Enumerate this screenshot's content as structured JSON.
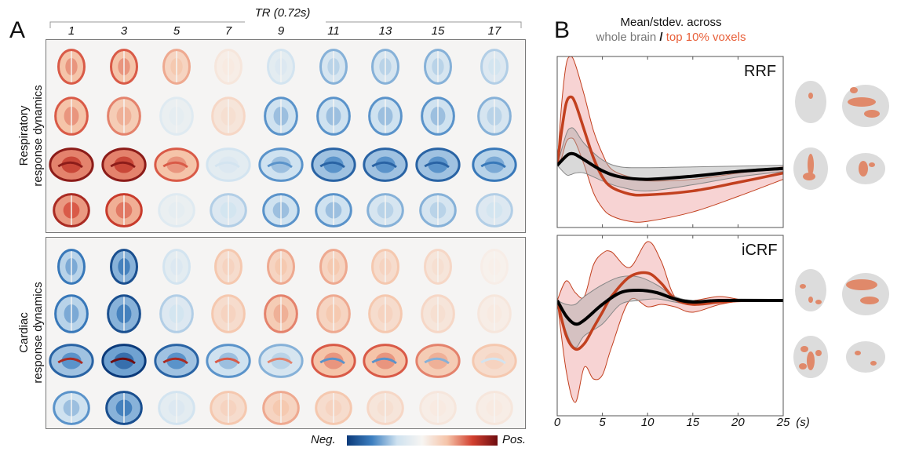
{
  "panel_a": {
    "letter": "A",
    "tr_label": "TR (0.72s)",
    "columns": [
      "1",
      "3",
      "5",
      "7",
      "9",
      "11",
      "13",
      "15",
      "17"
    ],
    "groups": [
      {
        "label_line1": "Respiratory",
        "label_line2": "response dynamics",
        "rows": [
          {
            "view": "axial-top",
            "values": [
              0.6,
              0.6,
              0.4,
              0.1,
              -0.3,
              -0.5,
              -0.5,
              -0.5,
              -0.4
            ]
          },
          {
            "view": "axial",
            "values": [
              0.6,
              0.5,
              -0.2,
              0.2,
              -0.6,
              -0.6,
              -0.6,
              -0.6,
              -0.5
            ]
          },
          {
            "view": "sagittal",
            "values": [
              0.9,
              0.9,
              0.6,
              -0.3,
              -0.6,
              -0.8,
              -0.8,
              -0.8,
              -0.7
            ]
          },
          {
            "view": "coronal",
            "values": [
              0.8,
              0.7,
              -0.2,
              -0.4,
              -0.6,
              -0.6,
              -0.5,
              -0.5,
              -0.4
            ]
          }
        ]
      },
      {
        "label_line1": "Cardiac",
        "label_line2": "response dynamics",
        "rows": [
          {
            "view": "axial-top",
            "values": [
              -0.7,
              -0.9,
              -0.3,
              0.3,
              0.4,
              0.4,
              0.3,
              0.2,
              0.05
            ]
          },
          {
            "view": "axial",
            "values": [
              -0.7,
              -0.9,
              -0.4,
              0.3,
              0.5,
              0.4,
              0.3,
              0.2,
              0.1
            ]
          },
          {
            "view": "sagittal",
            "values": [
              -0.8,
              -1.0,
              -0.8,
              -0.6,
              -0.5,
              0.6,
              0.6,
              0.5,
              0.3
            ]
          },
          {
            "view": "coronal",
            "values": [
              -0.6,
              -0.9,
              -0.3,
              0.3,
              0.4,
              0.3,
              0.2,
              0.1,
              0.1
            ]
          }
        ]
      }
    ],
    "colorbar": {
      "neg_label": "Neg.",
      "pos_label": "Pos.",
      "colors": [
        "#0b3a7a",
        "#3d7fc0",
        "#cfe2f0",
        "#f7f5f2",
        "#f5c3a8",
        "#d2402f",
        "#6e0c10"
      ]
    }
  },
  "panel_b": {
    "letter": "B",
    "title_line1": "Mean/stdev. across",
    "legend_gray": "whole brain",
    "legend_sep": "/",
    "legend_orange": "top 10% voxels",
    "colors": {
      "gray": "#777777",
      "orange": "#e8603a",
      "red_line": "#c2401f",
      "red_fill": "#f2b5b5",
      "black": "#000000",
      "mask_gray": "#dcdcdc",
      "mask_orange": "#e0896a"
    }
  },
  "chart_data": [
    {
      "type": "line",
      "title": "RRF",
      "xlabel": "(s)",
      "xlim": [
        0,
        25
      ],
      "xticks": [
        "0",
        "5",
        "10",
        "15",
        "20",
        "25"
      ],
      "ylim": [
        -0.8,
        1.4
      ],
      "series": [
        {
          "name": "top 10% voxels",
          "x": [
            0,
            0.5,
            1,
            1.5,
            2,
            3,
            4,
            5,
            6,
            8,
            10,
            15,
            20,
            25
          ],
          "mean": [
            0,
            0.45,
            0.8,
            0.88,
            0.8,
            0.45,
            0.1,
            -0.15,
            -0.28,
            -0.37,
            -0.38,
            -0.33,
            -0.22,
            -0.1
          ],
          "upper": [
            0,
            0.8,
            1.3,
            1.4,
            1.3,
            0.9,
            0.45,
            0.15,
            -0.05,
            -0.15,
            -0.2,
            -0.18,
            -0.1,
            -0.02
          ],
          "lower": [
            0,
            0.1,
            0.3,
            0.35,
            0.3,
            0.0,
            -0.35,
            -0.55,
            -0.65,
            -0.72,
            -0.72,
            -0.6,
            -0.4,
            -0.18
          ]
        },
        {
          "name": "whole brain",
          "x": [
            0,
            1,
            1.5,
            2,
            3,
            5,
            7,
            10,
            15,
            20,
            25
          ],
          "mean": [
            0,
            0.12,
            0.15,
            0.14,
            0.07,
            -0.07,
            -0.15,
            -0.18,
            -0.14,
            -0.08,
            -0.04
          ],
          "upper": [
            0,
            0.4,
            0.48,
            0.45,
            0.28,
            0.07,
            -0.02,
            -0.03,
            -0.02,
            -0.01,
            0.0
          ],
          "lower": [
            0,
            -0.12,
            -0.12,
            -0.1,
            -0.1,
            -0.2,
            -0.28,
            -0.33,
            -0.25,
            -0.15,
            -0.08
          ]
        }
      ]
    },
    {
      "type": "line",
      "title": "iCRF",
      "xlabel": "(s)",
      "xlim": [
        0,
        25
      ],
      "xticks": [
        "0",
        "5",
        "10",
        "15",
        "20",
        "25"
      ],
      "ylim": [
        -1.47,
        0.83
      ],
      "series": [
        {
          "name": "top 10% voxels",
          "x": [
            0,
            1,
            2,
            3,
            4,
            5,
            6,
            8,
            10,
            11.5,
            13,
            15,
            18,
            21,
            25
          ],
          "mean": [
            0,
            -0.45,
            -0.62,
            -0.55,
            -0.35,
            -0.15,
            0.05,
            0.3,
            0.35,
            0.22,
            0.02,
            -0.05,
            -0.02,
            0,
            0
          ],
          "upper": [
            0,
            0.25,
            0.1,
            0.05,
            0.45,
            0.6,
            0.62,
            0.42,
            0.75,
            0.5,
            0.05,
            0.0,
            0.05,
            0,
            0
          ],
          "lower": [
            0,
            -0.9,
            -1.3,
            -0.85,
            -1.0,
            -0.95,
            -0.6,
            0.0,
            -0.08,
            -0.05,
            -0.08,
            -0.15,
            -0.05,
            0,
            0
          ]
        },
        {
          "name": "whole brain",
          "x": [
            0,
            1,
            2,
            3,
            5,
            7,
            9,
            11,
            13,
            15,
            18,
            25
          ],
          "mean": [
            0,
            -0.2,
            -0.3,
            -0.25,
            -0.05,
            0.1,
            0.13,
            0.1,
            0.02,
            -0.02,
            0,
            0
          ],
          "upper": [
            0,
            -0.05,
            -0.05,
            0.05,
            0.2,
            0.3,
            0.3,
            0.2,
            0.05,
            0,
            0,
            0
          ],
          "lower": [
            0,
            -0.4,
            -0.6,
            -0.45,
            -0.3,
            -0.05,
            0.0,
            0.02,
            -0.02,
            -0.05,
            -0.01,
            0
          ]
        }
      ]
    }
  ]
}
